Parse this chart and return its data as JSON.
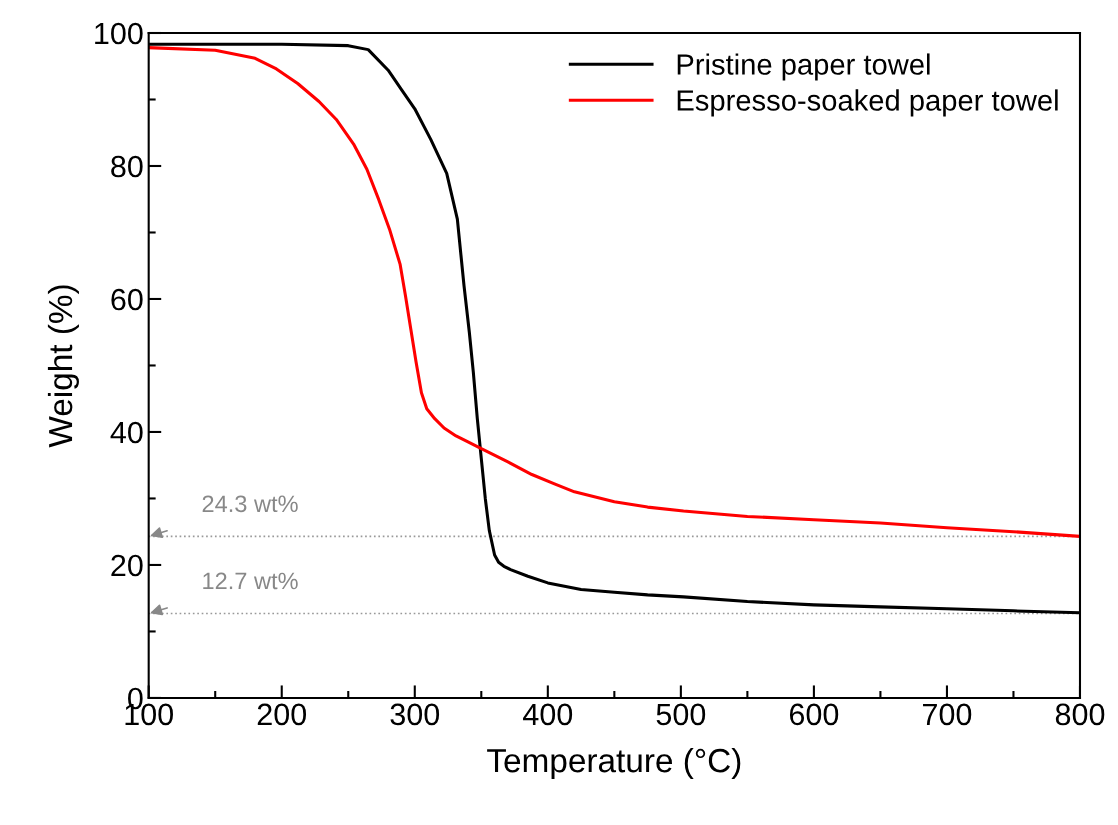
{
  "chart_data": {
    "type": "line",
    "xlabel": "Temperature (°C)",
    "ylabel": "Weight (%)",
    "xlim": [
      100,
      800
    ],
    "ylim": [
      0,
      100
    ],
    "xticks": [
      100,
      200,
      300,
      400,
      500,
      600,
      700,
      800
    ],
    "yticks": [
      0,
      20,
      40,
      60,
      80,
      100
    ],
    "grid": false,
    "legend": "top right",
    "line_style": "solid",
    "marker": "none",
    "series": [
      {
        "name": "Pristine paper towel",
        "color": "#000000",
        "x": [
          100,
          150,
          200,
          250,
          265,
          280,
          290,
          300,
          312,
          324,
          332,
          337,
          341,
          344,
          347,
          350,
          353,
          356,
          360,
          363,
          367,
          372,
          385,
          400,
          425,
          450,
          475,
          502,
          550,
          600,
          650,
          700,
          750,
          800
        ],
        "values": [
          98.3,
          98.3,
          98.3,
          98.1,
          97.5,
          94.4,
          91.5,
          88.6,
          84,
          78.9,
          72,
          62,
          55,
          49,
          42,
          36,
          30,
          25.2,
          21.5,
          20.4,
          19.8,
          19.3,
          18.3,
          17.3,
          16.3,
          15.9,
          15.5,
          15.2,
          14.5,
          14.0,
          13.7,
          13.4,
          13.1,
          12.8
        ]
      },
      {
        "name": "Espresso-soaked paper towel",
        "color": "#ff0000",
        "x": [
          100,
          150,
          180,
          196,
          212,
          228,
          241,
          254,
          264,
          273,
          281,
          289,
          293,
          297,
          301,
          305,
          309,
          315,
          322,
          331,
          340,
          350,
          370,
          388,
          405,
          420,
          450,
          475,
          502,
          550,
          600,
          650,
          700,
          750,
          800
        ],
        "values": [
          97.8,
          97.4,
          96.2,
          94.6,
          92.4,
          89.7,
          87,
          83.3,
          79.5,
          74.9,
          70.5,
          65.2,
          60.5,
          55.5,
          50.5,
          45.9,
          43.5,
          42,
          40.6,
          39.4,
          38.5,
          37.5,
          35.5,
          33.6,
          32.2,
          31,
          29.5,
          28.7,
          28.1,
          27.3,
          26.8,
          26.3,
          25.6,
          25,
          24.3
        ]
      }
    ],
    "ref_lines": [
      {
        "axis": "y",
        "value": 24.3,
        "color": "#999999",
        "line_style": "dotted"
      },
      {
        "axis": "y",
        "value": 12.7,
        "color": "#999999",
        "line_style": "dotted"
      }
    ],
    "annotations": [
      {
        "text": "24.3 wt%",
        "x": 100,
        "y": 24.3
      },
      {
        "text": "12.7 wt%",
        "x": 100,
        "y": 12.7
      }
    ]
  }
}
